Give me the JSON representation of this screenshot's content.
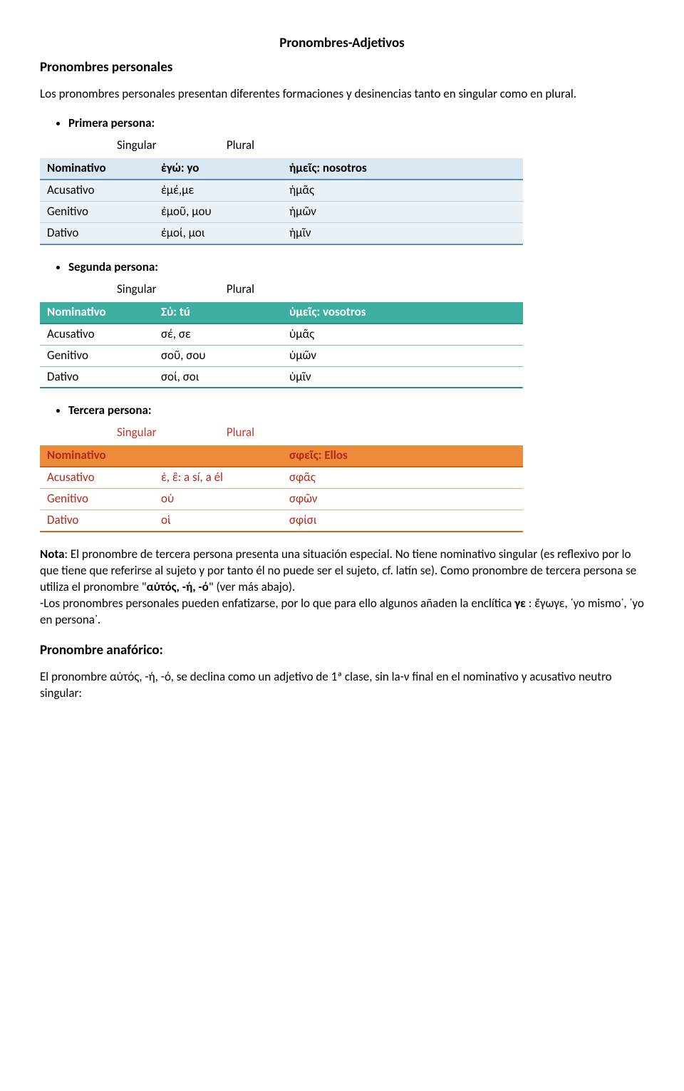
{
  "title_center": "Pronombres-Adjetivos",
  "h_personales": "Pronombres personales",
  "intro": "Los pronombres personales presentan diferentes formaciones y desinencias tanto en singular como en plural.",
  "bullet1": "Primera persona:",
  "bullet2": "Segunda persona:",
  "bullet3": "Tercera persona:",
  "col_sing": "Singular",
  "col_plur": "Plural",
  "t1": {
    "r0": {
      "c0": "Nominativo",
      "c1": "ἐγώ: yo",
      "c2": "ἡμεῖς: nosotros"
    },
    "r1": {
      "c0": "Acusativo",
      "c1": "ἐμέ,με",
      "c2": "ἡμᾶς"
    },
    "r2": {
      "c0": "Genitivo",
      "c1": "ἐμοῦ, μου",
      "c2": "ἡμῶν"
    },
    "r3": {
      "c0": "Dativo",
      "c1": "ἐμοί, μοι",
      "c2": "ἡμῖν"
    }
  },
  "t2": {
    "r0": {
      "c0": "Nominativo",
      "c1": "Σύ: tú",
      "c2": "ὑμεῖς: vosotros"
    },
    "r1": {
      "c0": "Acusativo",
      "c1": "σέ, σε",
      "c2": "ὑμᾶς"
    },
    "r2": {
      "c0": "Genitivo",
      "c1": "σοῦ, σου",
      "c2": "ὑμῶν"
    },
    "r3": {
      "c0": "Dativo",
      "c1": "σοί, σοι",
      "c2": "ὑμῖν"
    }
  },
  "t3": {
    "r0": {
      "c0": "Nominativo",
      "c1": "",
      "c2": "σφεῖς: Ellos"
    },
    "r1": {
      "c0": "Acusativo",
      "c1": "ἑ, ἓ: a sí, a él",
      "c2": "σφᾶς"
    },
    "r2": {
      "c0": "Genitivo",
      "c1": "οὑ",
      "c2": "σφῶν"
    },
    "r3": {
      "c0": "Dativo",
      "c1": "οἱ",
      "c2": "σφίσι"
    }
  },
  "nota": {
    "lead": "Nota",
    "body1": ": El pronombre de tercera persona presenta una situación especial. No tiene nominativo singular (es reflexivo por lo que tiene que referirse al sujeto y  por tanto él no puede ser el sujeto, cf",
    "latin_se": ". latín se",
    "body2": "). Como pronombre de tercera persona se utiliza el pronombre \"",
    "autos": "αὐτός, -ή, -ό",
    "body3": "\" (ver más abajo).",
    "line2a": "-Los pronombres personales pueden enfatizarse, por lo que para ello algunos añaden la enclítica ",
    "ge": "γε",
    "line2b": " :  ἔγωγε,  ῾yo mismo᾽, ῾yo en persona᾽."
  },
  "h_anaf": "Pronombre anafórico:",
  "anaf_p": "El  pronombre αὐτός, -ή, -ό, se declina como un adjetivo de 1ª clase, sin la-ν  final en el nominativo y acusativo neutro singular:"
}
